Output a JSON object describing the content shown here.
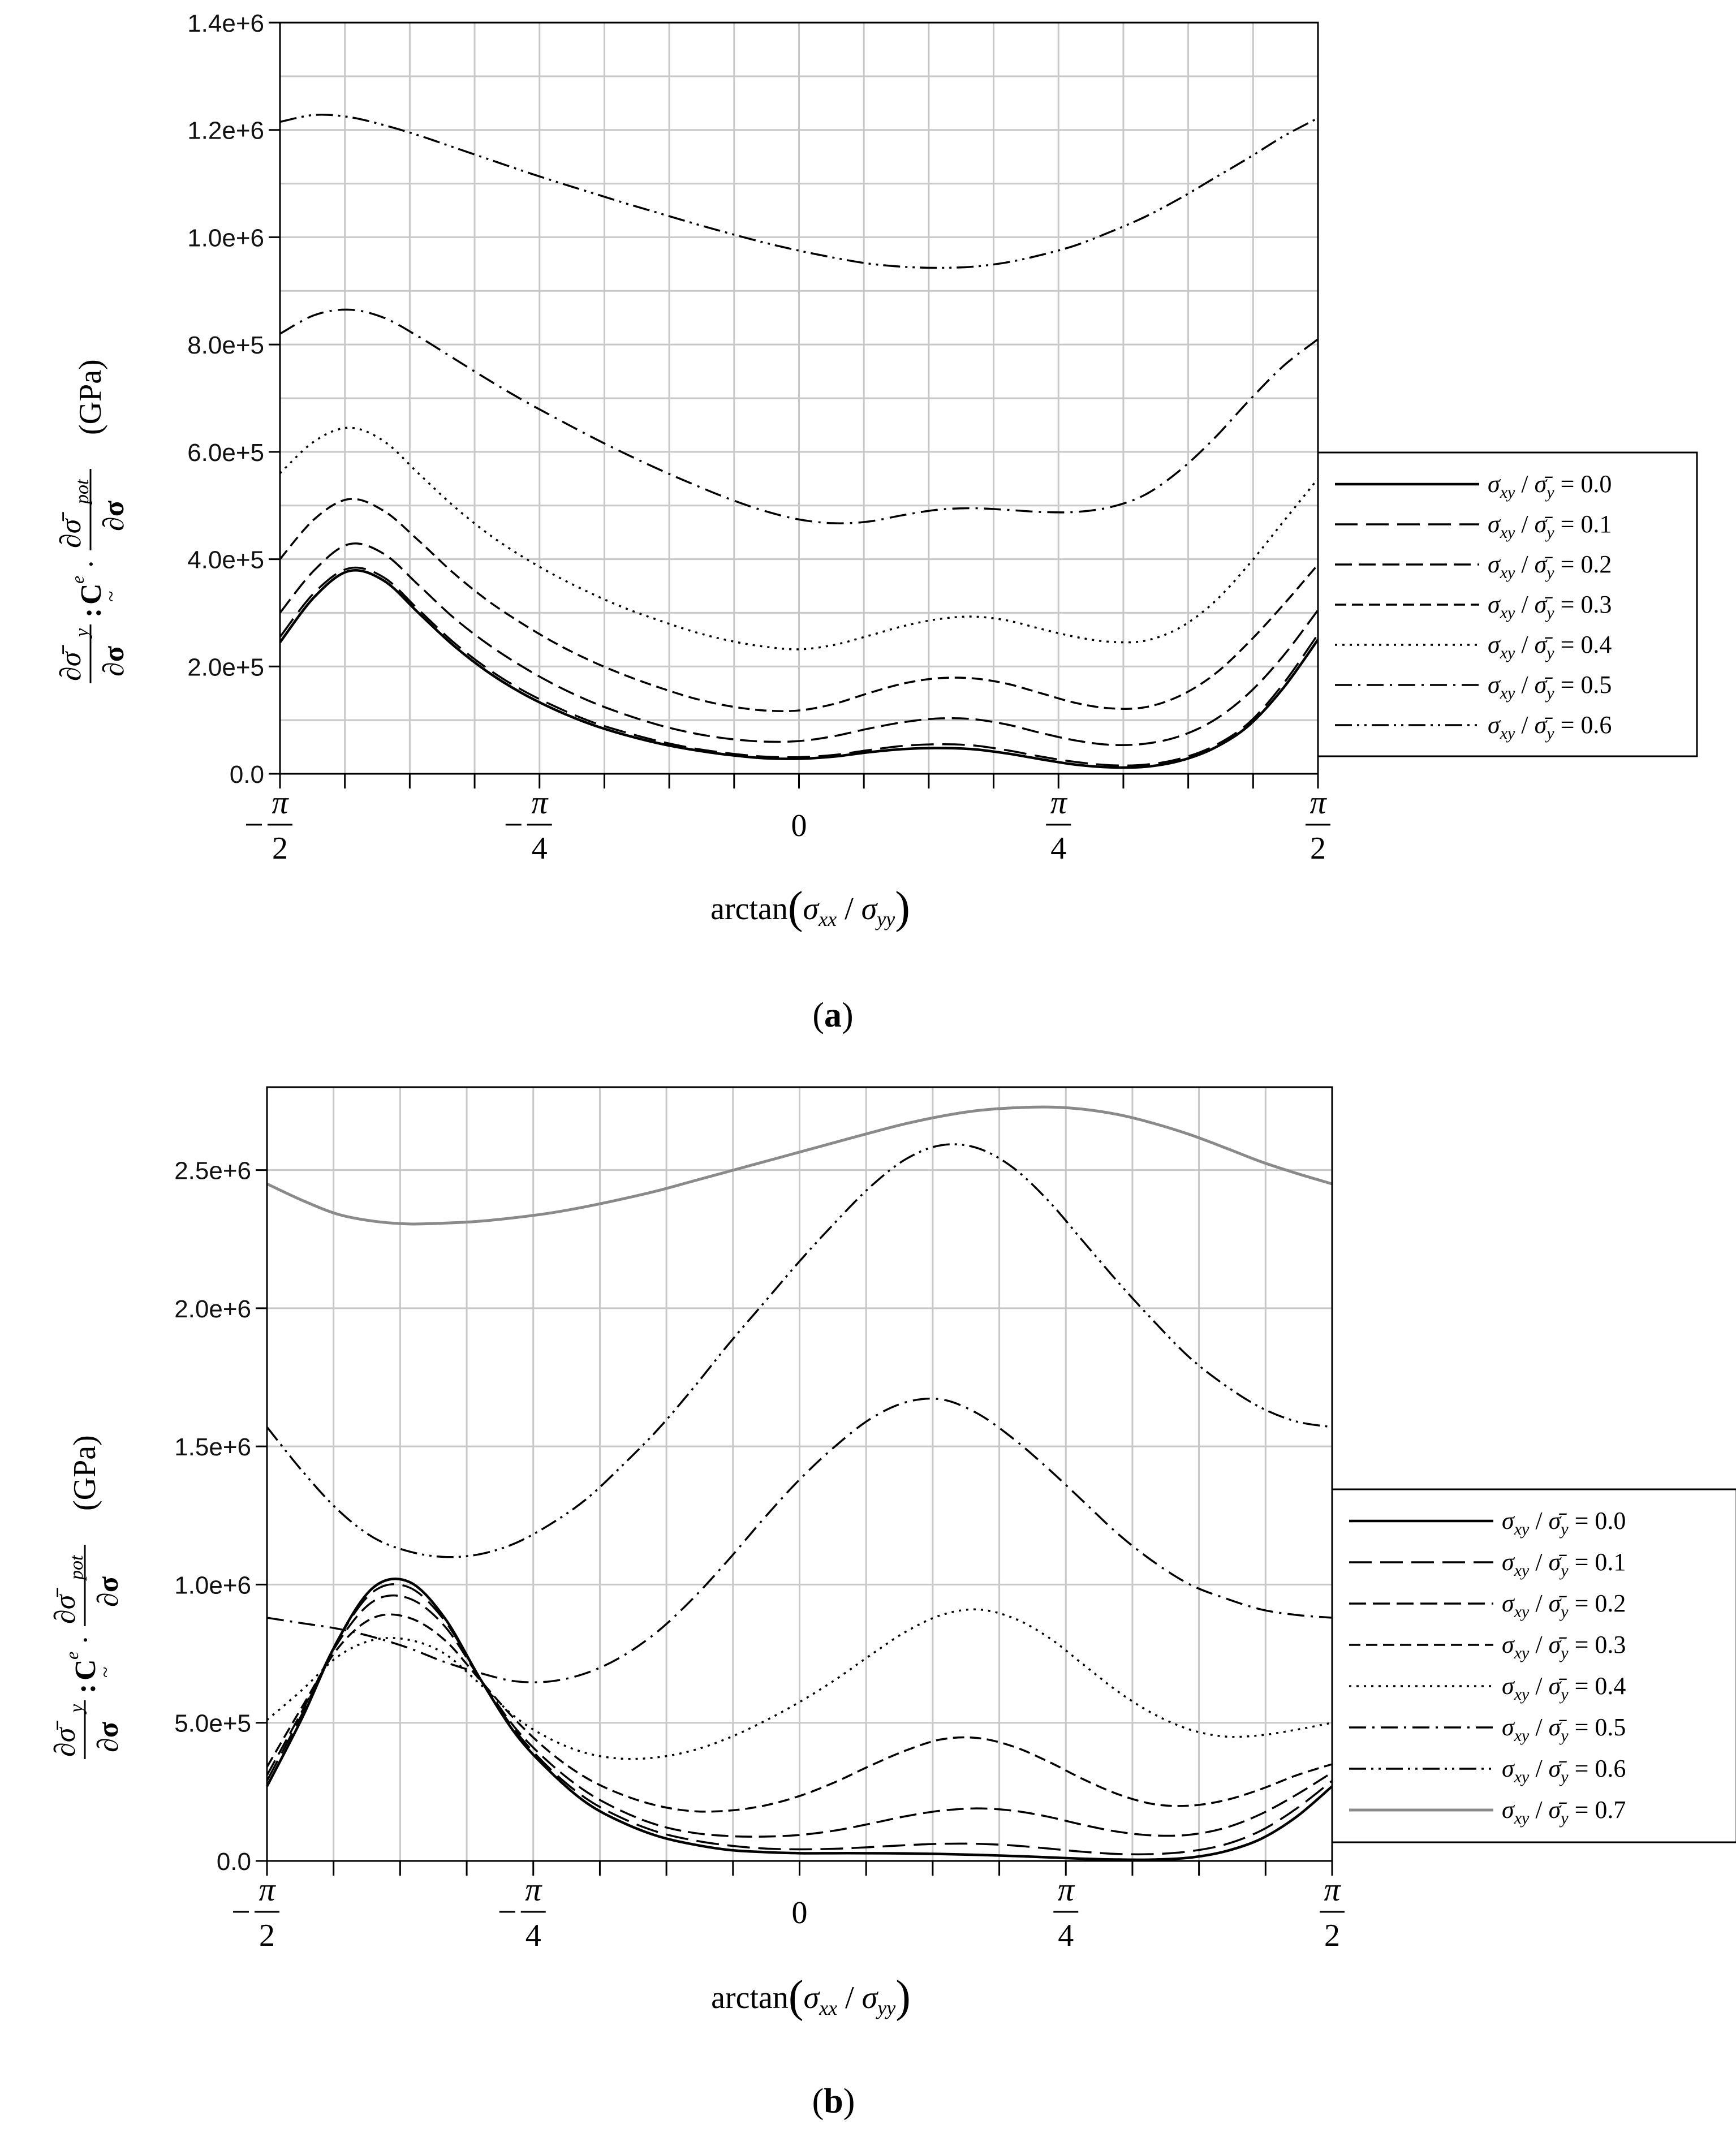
{
  "chart_data": [
    {
      "type": "line",
      "panel_label": "a",
      "xlabel": "arctan(σxx / σyy)",
      "ylabel": "∂σ̄y/∂σ : Ce · ∂σ̄pot/∂σ (GPa)",
      "ylabel_unit": "(GPa)",
      "xlim": [
        -1.5708,
        1.5708
      ],
      "ylim": [
        0,
        1400000
      ],
      "grid": true,
      "legend_position": "right",
      "x_ticks": [
        {
          "value": -1.5708,
          "label": "-π/2"
        },
        {
          "value": -0.7854,
          "label": "-π/4"
        },
        {
          "value": 0,
          "label": "0"
        },
        {
          "value": 0.7854,
          "label": "π/4"
        },
        {
          "value": 1.5708,
          "label": "π/2"
        }
      ],
      "y_ticks": [
        {
          "value": 0,
          "label": "0.0"
        },
        {
          "value": 200000,
          "label": "2.0e+5"
        },
        {
          "value": 400000,
          "label": "4.0e+5"
        },
        {
          "value": 600000,
          "label": "6.0e+5"
        },
        {
          "value": 800000,
          "label": "8.0e+5"
        },
        {
          "value": 1000000,
          "label": "1.0e+6"
        },
        {
          "value": 1200000,
          "label": "1.2e+6"
        },
        {
          "value": 1400000,
          "label": "1.4e+6"
        }
      ],
      "x": [
        -1.5708,
        -1.4661,
        -1.3614,
        -1.2566,
        -1.1519,
        -1.0472,
        -0.9425,
        -0.8378,
        -0.733,
        -0.6283,
        -0.5236,
        -0.4189,
        -0.3142,
        -0.2094,
        -0.1047,
        0,
        0.1047,
        0.2094,
        0.3142,
        0.4189,
        0.5236,
        0.6283,
        0.733,
        0.8378,
        0.9425,
        1.0472,
        1.1519,
        1.2566,
        1.3614,
        1.4661,
        1.5708
      ],
      "series": [
        {
          "name": "σxy / σ̄y = 0.0",
          "dash": "solid",
          "color": "#000000",
          "width": 4.5,
          "values": [
            245000,
            330000,
            378000,
            360000,
            300000,
            240000,
            190000,
            150000,
            118000,
            92000,
            72000,
            56000,
            44000,
            35000,
            29000,
            28000,
            32000,
            40000,
            46000,
            48000,
            46000,
            38000,
            27000,
            17000,
            12000,
            13000,
            24000,
            48000,
            90000,
            160000,
            250000
          ]
        },
        {
          "name": "σxy / σ̄y = 0.1",
          "dash": "long-dash",
          "color": "#000000",
          "width": 3.5,
          "values": [
            255000,
            338000,
            383000,
            366000,
            306000,
            246000,
            196000,
            156000,
            124000,
            97000,
            77000,
            60000,
            47000,
            38000,
            32000,
            31000,
            35000,
            44000,
            52000,
            55000,
            53000,
            44000,
            32000,
            22000,
            16000,
            17000,
            28000,
            52000,
            95000,
            168000,
            260000
          ]
        },
        {
          "name": "σxy / σ̄y = 0.2",
          "dash": "medium-dash",
          "color": "#000000",
          "width": 3.5,
          "values": [
            300000,
            380000,
            428000,
            410000,
            352000,
            292000,
            242000,
            200000,
            164000,
            134000,
            110000,
            90000,
            75000,
            65000,
            60000,
            61000,
            70000,
            84000,
            96000,
            103000,
            102000,
            92000,
            76000,
            62000,
            54000,
            56000,
            70000,
            100000,
            150000,
            220000,
            305000
          ]
        },
        {
          "name": "σxy / σ̄y = 0.3",
          "dash": "short-dash",
          "color": "#000000",
          "width": 3.5,
          "values": [
            400000,
            475000,
            512000,
            490000,
            435000,
            375000,
            323000,
            280000,
            242000,
            210000,
            183000,
            160000,
            140000,
            126000,
            118000,
            118000,
            130000,
            150000,
            168000,
            178000,
            178000,
            168000,
            150000,
            132000,
            122000,
            124000,
            145000,
            185000,
            245000,
            315000,
            390000
          ]
        },
        {
          "name": "σxy / σ̄y = 0.4",
          "dash": "dotted",
          "color": "#000000",
          "width": 3.5,
          "values": [
            560000,
            620000,
            645000,
            620000,
            560000,
            500000,
            448000,
            405000,
            368000,
            336000,
            308000,
            285000,
            264000,
            248000,
            237000,
            232000,
            240000,
            257000,
            275000,
            288000,
            293000,
            286000,
            270000,
            255000,
            246000,
            248000,
            272000,
            320000,
            390000,
            470000,
            550000
          ]
        },
        {
          "name": "σxy / σ̄y = 0.5",
          "dash": "dash-dot",
          "color": "#000000",
          "width": 3.5,
          "values": [
            820000,
            855000,
            865000,
            850000,
            815000,
            775000,
            735000,
            697000,
            662000,
            628000,
            596000,
            566000,
            538000,
            512000,
            490000,
            474000,
            467000,
            470000,
            482000,
            492000,
            495000,
            492000,
            488000,
            488000,
            497000,
            520000,
            565000,
            625000,
            695000,
            760000,
            810000
          ]
        },
        {
          "name": "σxy / σ̄y = 0.6",
          "dash": "dash-dot-dot",
          "color": "#000000",
          "width": 3.5,
          "values": [
            1215000,
            1228000,
            1224000,
            1209000,
            1190000,
            1168000,
            1146000,
            1124000,
            1103000,
            1083000,
            1063000,
            1044000,
            1025000,
            1007000,
            990000,
            975000,
            962000,
            951000,
            945000,
            943000,
            945000,
            953000,
            967000,
            985000,
            1010000,
            1038000,
            1072000,
            1110000,
            1148000,
            1188000,
            1222000
          ]
        }
      ]
    },
    {
      "type": "line",
      "panel_label": "b",
      "xlabel": "arctan(σxx / σyy)",
      "ylabel": "∂σ̄y/∂σ : Ce · ∂σ̄pot/∂σ (GPa)",
      "ylabel_unit": "(GPa)",
      "xlim": [
        -1.5708,
        1.5708
      ],
      "ylim": [
        0,
        2800000
      ],
      "grid": true,
      "legend_position": "right",
      "x_ticks": [
        {
          "value": -1.5708,
          "label": "-π/2"
        },
        {
          "value": -0.7854,
          "label": "-π/4"
        },
        {
          "value": 0,
          "label": "0"
        },
        {
          "value": 0.7854,
          "label": "π/4"
        },
        {
          "value": 1.5708,
          "label": "π/2"
        }
      ],
      "y_ticks": [
        {
          "value": 0,
          "label": "0.0"
        },
        {
          "value": 500000,
          "label": "5.0e+5"
        },
        {
          "value": 1000000,
          "label": "1.0e+6"
        },
        {
          "value": 1500000,
          "label": "1.5e+6"
        },
        {
          "value": 2000000,
          "label": "2.0e+6"
        },
        {
          "value": 2500000,
          "label": "2.5e+6"
        }
      ],
      "x": [
        -1.5708,
        -1.4661,
        -1.3614,
        -1.2566,
        -1.1519,
        -1.0472,
        -0.9425,
        -0.8378,
        -0.733,
        -0.6283,
        -0.5236,
        -0.4189,
        -0.3142,
        -0.2094,
        -0.1047,
        0,
        0.1047,
        0.2094,
        0.3142,
        0.4189,
        0.5236,
        0.6283,
        0.733,
        0.8378,
        0.9425,
        1.0472,
        1.1519,
        1.2566,
        1.3614,
        1.4661,
        1.5708
      ],
      "series": [
        {
          "name": "σxy / σ̄y = 0.0",
          "dash": "solid",
          "color": "#000000",
          "width": 4.5,
          "values": [
            270000,
            520000,
            800000,
            990000,
            1010000,
            880000,
            660000,
            460000,
            320000,
            210000,
            140000,
            90000,
            60000,
            40000,
            32000,
            28000,
            28000,
            28000,
            27000,
            25000,
            22000,
            18000,
            13000,
            8000,
            5000,
            5000,
            12000,
            35000,
            80000,
            160000,
            270000
          ]
        },
        {
          "name": "σxy / σ̄y = 0.1",
          "dash": "long-dash",
          "color": "#000000",
          "width": 3.5,
          "values": [
            290000,
            535000,
            800000,
            975000,
            990000,
            870000,
            660000,
            470000,
            330000,
            225000,
            155000,
            105000,
            75000,
            56000,
            45000,
            42000,
            44000,
            50000,
            57000,
            62000,
            62000,
            56000,
            45000,
            33000,
            25000,
            25000,
            35000,
            60000,
            110000,
            190000,
            290000
          ]
        },
        {
          "name": "σxy / σ̄y = 0.2",
          "dash": "medium-dash",
          "color": "#000000",
          "width": 3.5,
          "values": [
            310000,
            545000,
            790000,
            940000,
            950000,
            850000,
            660000,
            480000,
            350000,
            250000,
            180000,
            130000,
            102000,
            90000,
            88000,
            94000,
            110000,
            135000,
            162000,
            182000,
            190000,
            182000,
            160000,
            130000,
            105000,
            92000,
            95000,
            120000,
            170000,
            240000,
            320000
          ]
        },
        {
          "name": "σxy / σ̄y = 0.3",
          "dash": "short-dash",
          "color": "#000000",
          "width": 3.5,
          "values": [
            340000,
            560000,
            770000,
            880000,
            880000,
            800000,
            655000,
            510000,
            390000,
            300000,
            240000,
            200000,
            180000,
            182000,
            200000,
            235000,
            285000,
            345000,
            400000,
            440000,
            445000,
            415000,
            360000,
            295000,
            240000,
            205000,
            200000,
            220000,
            260000,
            310000,
            350000
          ]
        },
        {
          "name": "σxy / σ̄y = 0.4",
          "dash": "dotted",
          "color": "#000000",
          "width": 3.5,
          "values": [
            510000,
            620000,
            740000,
            800000,
            800000,
            750000,
            640000,
            520000,
            440000,
            390000,
            370000,
            375000,
            400000,
            445000,
            505000,
            575000,
            655000,
            745000,
            830000,
            890000,
            910000,
            880000,
            810000,
            710000,
            610000,
            530000,
            475000,
            450000,
            455000,
            475000,
            500000
          ]
        },
        {
          "name": "σxy / σ̄y = 0.5",
          "dash": "dash-dot",
          "color": "#000000",
          "width": 3.5,
          "values": [
            880000,
            860000,
            840000,
            810000,
            770000,
            720000,
            680000,
            650000,
            650000,
            680000,
            740000,
            830000,
            950000,
            1090000,
            1240000,
            1380000,
            1500000,
            1600000,
            1660000,
            1670000,
            1620000,
            1530000,
            1420000,
            1300000,
            1180000,
            1080000,
            1000000,
            950000,
            910000,
            890000,
            880000
          ]
        },
        {
          "name": "σxy / σ̄y = 0.6",
          "dash": "dash-dot-dot",
          "color": "#000000",
          "width": 3.5,
          "values": [
            1570000,
            1410000,
            1270000,
            1170000,
            1120000,
            1100000,
            1110000,
            1150000,
            1220000,
            1310000,
            1430000,
            1560000,
            1710000,
            1870000,
            2020000,
            2170000,
            2310000,
            2440000,
            2540000,
            2590000,
            2580000,
            2510000,
            2390000,
            2240000,
            2090000,
            1950000,
            1820000,
            1720000,
            1640000,
            1590000,
            1570000
          ]
        },
        {
          "name": "σxy / σ̄y = 0.7",
          "dash": "solid",
          "color": "#8a8a8a",
          "width": 5,
          "values": [
            2450000,
            2390000,
            2340000,
            2315000,
            2305000,
            2308000,
            2315000,
            2328000,
            2345000,
            2368000,
            2395000,
            2425000,
            2460000,
            2495000,
            2530000,
            2565000,
            2600000,
            2635000,
            2668000,
            2695000,
            2715000,
            2725000,
            2728000,
            2720000,
            2700000,
            2668000,
            2628000,
            2580000,
            2530000,
            2488000,
            2450000
          ]
        }
      ]
    }
  ]
}
